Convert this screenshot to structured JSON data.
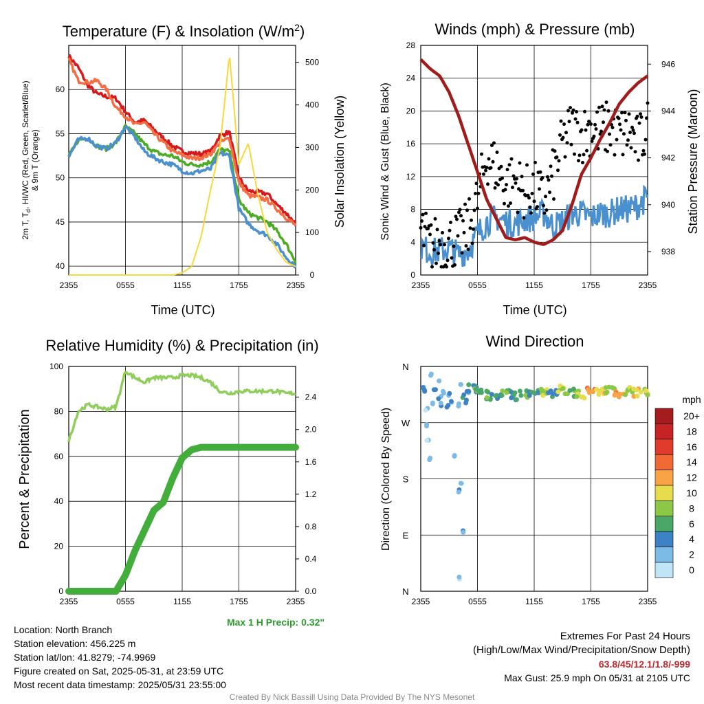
{
  "charts": {
    "temp": {
      "title": "Temperature (F) & Insolation (W/m",
      "title_sup": "2",
      "title_end": ")",
      "ylabel_left_lines": [
        "2m T, T",
        "d",
        ", HI/WC (Red, Green, Scarlet/Blue)",
        "& 9m T (Orange)"
      ],
      "ylabel_right": "Solar Insolation (Yellow)",
      "xlabel": "Time (UTC)"
    },
    "wind": {
      "title": "Winds (mph) & Pressure (mb)",
      "ylabel_left": "Sonic Wind & Gust (Blue, Black)",
      "ylabel_right": "Station Pressure (Maroon)",
      "xlabel": "Time (UTC)"
    },
    "rh": {
      "title": "Relative Humidity (%) & Precipitation (in)",
      "ylabel_left": "Percent & Precipitation",
      "annotation": "Max 1 H Precip: 0.32\""
    },
    "dir": {
      "title": "Wind Direction",
      "ylabel_left": "Direction (Colored By Speed)",
      "legend_title": "mph"
    }
  },
  "chart_data": [
    {
      "type": "line",
      "x_ticks": [
        "2355",
        "0555",
        "1155",
        "1755",
        "2355"
      ],
      "ylim_left": [
        39,
        65
      ],
      "yticks_left": [
        40,
        45,
        50,
        55,
        60
      ],
      "ylim_right": [
        0,
        540
      ],
      "yticks_right": [
        0,
        100,
        200,
        300,
        400,
        500
      ],
      "grid": true,
      "x": [
        0,
        1,
        2,
        3,
        4,
        5,
        6,
        7,
        8,
        9,
        10,
        11,
        12,
        13,
        14,
        15,
        16,
        17,
        18,
        19,
        20,
        21,
        22,
        23,
        24
      ],
      "series": [
        {
          "color": "#d7191c",
          "axis": "left",
          "values": [
            63.8,
            62.5,
            60.5,
            59.5,
            59.2,
            59.0,
            57.5,
            56.3,
            56.5,
            55.5,
            54.5,
            53.6,
            53.0,
            52.8,
            52.7,
            53.0,
            54.8,
            55.2,
            50.0,
            48.5,
            48.4,
            48.2,
            47.0,
            46.0,
            44.8
          ]
        },
        {
          "color": "#f46d43",
          "axis": "left",
          "values": [
            63.4,
            61.0,
            60.8,
            61.0,
            60.0,
            58.0,
            57.0,
            56.0,
            56.3,
            55.0,
            54.0,
            53.0,
            52.6,
            52.2,
            52.3,
            52.7,
            54.0,
            54.5,
            49.5,
            48.0,
            47.8,
            47.5,
            46.5,
            45.5,
            44.6
          ]
        },
        {
          "color": "#4dac26",
          "axis": "left",
          "values": [
            52.4,
            54.3,
            54.5,
            53.6,
            53.3,
            54.0,
            55.8,
            55.0,
            53.8,
            53.0,
            52.6,
            52.5,
            51.8,
            51.5,
            51.5,
            51.8,
            53.2,
            53.0,
            47.5,
            46.0,
            45.5,
            45.0,
            44.0,
            42.5,
            40.5
          ]
        },
        {
          "color": "#4a90cf",
          "axis": "left",
          "values": [
            52.4,
            54.3,
            54.5,
            53.6,
            53.3,
            54.0,
            55.8,
            54.6,
            53.0,
            52.3,
            51.8,
            51.5,
            50.8,
            50.5,
            50.8,
            51.0,
            52.8,
            52.5,
            46.5,
            44.8,
            44.0,
            43.5,
            42.5,
            41.0,
            40.0
          ]
        },
        {
          "color": "#f7d93c",
          "axis": "right",
          "values": [
            0,
            0,
            0,
            0,
            0,
            0,
            0,
            0,
            0,
            0,
            0,
            0,
            5,
            20,
            90,
            200,
            300,
            520,
            260,
            310,
            190,
            100,
            60,
            30,
            20
          ]
        }
      ]
    },
    {
      "type": "scatter",
      "x_ticks": [
        "2355",
        "0555",
        "1155",
        "1755",
        "2355"
      ],
      "ylim_left": [
        0,
        28
      ],
      "yticks_left": [
        0,
        4,
        8,
        12,
        16,
        20,
        24,
        28
      ],
      "ylim_right": [
        937,
        946.8
      ],
      "yticks_right": [
        938,
        940,
        942,
        944,
        946
      ],
      "grid": true,
      "x": [
        0,
        1,
        2,
        3,
        4,
        5,
        6,
        7,
        8,
        9,
        10,
        11,
        12,
        13,
        14,
        15,
        16,
        17,
        18,
        19,
        20,
        21,
        22,
        23,
        24
      ],
      "series": [
        {
          "name": "Pressure",
          "color": "#a01c1c",
          "axis": "right",
          "values": [
            946.2,
            945.8,
            945.5,
            944.8,
            943.8,
            942.6,
            941.4,
            940.2,
            939.4,
            938.6,
            938.5,
            938.6,
            938.4,
            938.3,
            938.5,
            938.9,
            940.0,
            941.3,
            942.0,
            942.8,
            943.5,
            944.3,
            944.8,
            945.2,
            945.5
          ]
        },
        {
          "name": "Wind",
          "color": "#4a90cf",
          "axis": "left",
          "values": [
            3.5,
            2.8,
            3.0,
            3.2,
            2.5,
            3.0,
            5.0,
            6.5,
            7.0,
            6.5,
            6.2,
            6.8,
            7.0,
            7.5,
            6.0,
            6.5,
            7.5,
            7.5,
            7.0,
            7.5,
            7.5,
            8.0,
            8.0,
            8.5,
            9.5
          ]
        },
        {
          "name": "Gust",
          "color": "#000000",
          "axis": "left",
          "values": [
            5.5,
            3.5,
            4.0,
            4.0,
            4.5,
            5.5,
            9.0,
            14.5,
            13.0,
            11.0,
            11.5,
            10.0,
            10.5,
            9.0,
            12.0,
            16.0,
            18.0,
            17.0,
            18.0,
            17.5,
            18.0,
            17.0,
            17.5,
            16.0,
            18.0
          ]
        }
      ]
    },
    {
      "type": "line",
      "x_ticks": [
        "2355",
        "0555",
        "1155",
        "1755",
        "2355"
      ],
      "ylim_left": [
        0,
        100
      ],
      "yticks_left": [
        0,
        20,
        40,
        60,
        80,
        100
      ],
      "ylim_right": [
        0,
        2.78
      ],
      "yticks_right": [
        0.0,
        0.4,
        0.8,
        1.2,
        1.6,
        2.0,
        2.4
      ],
      "grid": true,
      "x": [
        0,
        1,
        2,
        3,
        4,
        5,
        6,
        7,
        8,
        9,
        10,
        11,
        12,
        13,
        14,
        15,
        16,
        17,
        18,
        19,
        20,
        21,
        22,
        23,
        24
      ],
      "series": [
        {
          "name": "RH",
          "color": "#8fce5a",
          "axis": "left",
          "values": [
            67,
            80,
            83,
            82,
            81,
            82,
            98,
            95,
            93,
            95,
            95,
            95,
            96,
            96,
            95,
            93,
            89,
            88,
            89,
            89,
            89,
            89,
            89,
            88,
            88
          ]
        },
        {
          "name": "Precip",
          "color": "#43ad3c",
          "axis": "right",
          "values": [
            0,
            0,
            0,
            0,
            0,
            0,
            0.2,
            0.5,
            0.75,
            1.0,
            1.1,
            1.4,
            1.65,
            1.75,
            1.78,
            1.78,
            1.78,
            1.78,
            1.78,
            1.78,
            1.78,
            1.78,
            1.78,
            1.78,
            1.78
          ]
        }
      ]
    },
    {
      "type": "scatter",
      "x_ticks": [
        "2355",
        "0555",
        "1155",
        "1755",
        "2355"
      ],
      "yticks_left": [
        "N",
        "W",
        "S",
        "E",
        "N"
      ],
      "ylim_left": [
        0,
        360
      ],
      "grid": true,
      "points": [
        {
          "x": 0.3,
          "y": 328,
          "s": 3
        },
        {
          "x": 0.5,
          "y": 322,
          "s": 2
        },
        {
          "x": 0.6,
          "y": 290,
          "s": 1
        },
        {
          "x": 0.7,
          "y": 266,
          "s": 1
        },
        {
          "x": 0.8,
          "y": 240,
          "s": 1
        },
        {
          "x": 0.9,
          "y": 212,
          "s": 2
        },
        {
          "x": 1.0,
          "y": 346,
          "s": 3
        },
        {
          "x": 1.2,
          "y": 300,
          "s": 2
        },
        {
          "x": 1.5,
          "y": 320,
          "s": 2
        },
        {
          "x": 1.8,
          "y": 338,
          "s": 1
        },
        {
          "x": 2.0,
          "y": 310,
          "s": 2
        },
        {
          "x": 2.2,
          "y": 300,
          "s": 3
        },
        {
          "x": 2.5,
          "y": 320,
          "s": 1
        },
        {
          "x": 2.8,
          "y": 296,
          "s": 2
        },
        {
          "x": 3.0,
          "y": 316,
          "s": 2
        },
        {
          "x": 3.3,
          "y": 302,
          "s": 3
        },
        {
          "x": 3.6,
          "y": 218,
          "s": 1
        },
        {
          "x": 3.9,
          "y": 298,
          "s": 2
        },
        {
          "x": 4.0,
          "y": 20,
          "s": 1
        },
        {
          "x": 4.1,
          "y": 160,
          "s": 2
        },
        {
          "x": 4.2,
          "y": 172,
          "s": 1
        },
        {
          "x": 4.3,
          "y": 330,
          "s": 3
        },
        {
          "x": 4.4,
          "y": 96,
          "s": 2
        },
        {
          "x": 4.5,
          "y": 312,
          "s": 4
        },
        {
          "x": 4.8,
          "y": 304,
          "s": 2
        },
        {
          "x": 5.0,
          "y": 318,
          "s": 3
        },
        {
          "x": 5.5,
          "y": 324,
          "s": 4
        },
        {
          "x": 6.0,
          "y": 318,
          "s": 6
        },
        {
          "x": 7.0,
          "y": 314,
          "s": 6
        },
        {
          "x": 8.0,
          "y": 310,
          "s": 4
        },
        {
          "x": 9.0,
          "y": 316,
          "s": 6
        },
        {
          "x": 10.0,
          "y": 312,
          "s": 4
        },
        {
          "x": 11.0,
          "y": 316,
          "s": 6
        },
        {
          "x": 12.0,
          "y": 318,
          "s": 4
        },
        {
          "x": 13.0,
          "y": 320,
          "s": 8
        },
        {
          "x": 14.0,
          "y": 316,
          "s": 4
        },
        {
          "x": 15.0,
          "y": 322,
          "s": 8
        },
        {
          "x": 16.0,
          "y": 318,
          "s": 6
        },
        {
          "x": 17.0,
          "y": 316,
          "s": 8
        },
        {
          "x": 18.0,
          "y": 320,
          "s": 12
        },
        {
          "x": 19.0,
          "y": 318,
          "s": 10
        },
        {
          "x": 20.0,
          "y": 322,
          "s": 8
        },
        {
          "x": 21.0,
          "y": 316,
          "s": 12
        },
        {
          "x": 22.0,
          "y": 320,
          "s": 8
        },
        {
          "x": 23.0,
          "y": 318,
          "s": 10
        },
        {
          "x": 24.0,
          "y": 320,
          "s": 8
        }
      ],
      "legend": {
        "title": "mph",
        "labels": [
          "20+",
          "18",
          "16",
          "14",
          "12",
          "10",
          "8",
          "6",
          "4",
          "2",
          "0"
        ],
        "colors": [
          "#a51c1e",
          "#c62327",
          "#e03b2c",
          "#f16a35",
          "#f8a446",
          "#e6dc4e",
          "#8cc746",
          "#4aa768",
          "#3d82c4",
          "#7bbbe6",
          "#bfe5f7"
        ]
      }
    }
  ],
  "info": {
    "location": "Location: North Branch",
    "elevation": "Station elevation: 456.225 m",
    "latlon": "Station lat/lon: 41.8279; -74.9969",
    "created": "Figure created on Sat, 2025-05-31, at 23:59 UTC",
    "recent": "Most recent data timestamp: 2025/05/31 23:55:00",
    "extremes_title": "Extremes For Past 24 Hours",
    "extremes_sub": "(High/Low/Max Wind/Precipitation/Snow Depth)",
    "extremes_values": "63.8/45/12.1/1.8/-999",
    "max_gust": "Max Gust: 25.9 mph On 05/31 at 2105 UTC",
    "credit": "Created By Nick Bassill Using Data Provided By The NYS Mesonet"
  }
}
